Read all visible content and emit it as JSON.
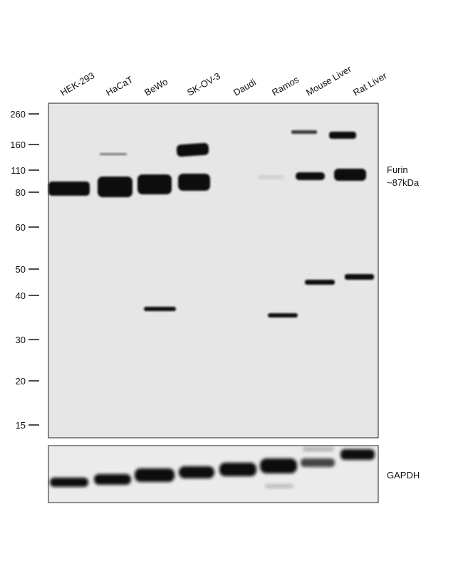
{
  "lanes": [
    "HEK-293",
    "HaCaT",
    "BeWo",
    "SK-OV-3",
    "Daudi",
    "Ramos",
    "Mouse Liver",
    "Rat Liver"
  ],
  "markers": [
    260,
    160,
    110,
    80,
    60,
    50,
    40,
    30,
    20,
    15
  ],
  "target": {
    "name": "Furin",
    "size": "~87kDa"
  },
  "loading_control": "GAPDH"
}
